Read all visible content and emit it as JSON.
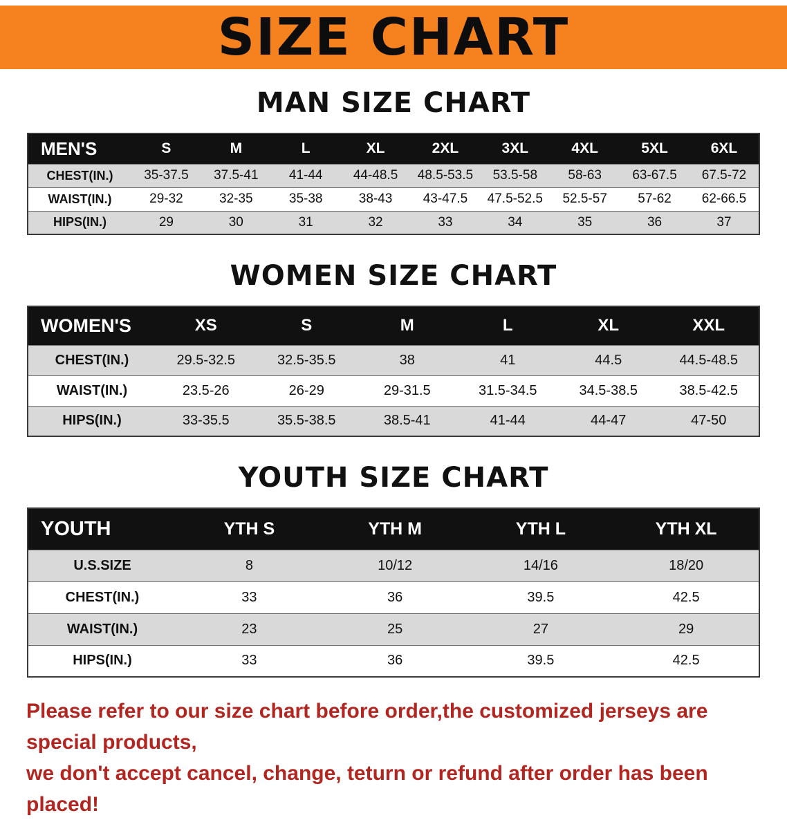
{
  "banner": {
    "title": "SIZE CHART"
  },
  "colors": {
    "banner_bg": "#F5821F",
    "banner_text": "#0D0D0D",
    "table_header_bg": "#111111",
    "table_header_text": "#FFFFFF",
    "stripe_bg": "#D9D9D9",
    "note_text": "#B12621"
  },
  "sections": [
    {
      "id": "mens",
      "heading": "MAN SIZE CHART",
      "table": {
        "header": [
          "MEN'S",
          "S",
          "M",
          "L",
          "XL",
          "2XL",
          "3XL",
          "4XL",
          "5XL",
          "6XL"
        ],
        "rows": [
          [
            "CHEST(IN.)",
            "35-37.5",
            "37.5-41",
            "41-44",
            "44-48.5",
            "48.5-53.5",
            "53.5-58",
            "58-63",
            "63-67.5",
            "67.5-72"
          ],
          [
            "WAIST(IN.)",
            "29-32",
            "32-35",
            "35-38",
            "38-43",
            "43-47.5",
            "47.5-52.5",
            "52.5-57",
            "57-62",
            "62-66.5"
          ],
          [
            "HIPS(IN.)",
            "29",
            "30",
            "31",
            "32",
            "33",
            "34",
            "35",
            "36",
            "37"
          ]
        ]
      }
    },
    {
      "id": "womens",
      "heading": "WOMEN SIZE CHART",
      "table": {
        "header": [
          "WOMEN'S",
          "XS",
          "S",
          "M",
          "L",
          "XL",
          "XXL"
        ],
        "rows": [
          [
            "CHEST(IN.)",
            "29.5-32.5",
            "32.5-35.5",
            "38",
            "41",
            "44.5",
            "44.5-48.5"
          ],
          [
            "WAIST(IN.)",
            "23.5-26",
            "26-29",
            "29-31.5",
            "31.5-34.5",
            "34.5-38.5",
            "38.5-42.5"
          ],
          [
            "HIPS(IN.)",
            "33-35.5",
            "35.5-38.5",
            "38.5-41",
            "41-44",
            "44-47",
            "47-50"
          ]
        ]
      }
    },
    {
      "id": "youth",
      "heading": "YOUTH SIZE CHART",
      "table": {
        "header": [
          "YOUTH",
          "YTH S",
          "YTH M",
          "YTH L",
          "YTH XL"
        ],
        "rows": [
          [
            "U.S.SIZE",
            "8",
            "10/12",
            "14/16",
            "18/20"
          ],
          [
            "CHEST(IN.)",
            "33",
            "36",
            "39.5",
            "42.5"
          ],
          [
            "WAIST(IN.)",
            "23",
            "25",
            "27",
            "29"
          ],
          [
            "HIPS(IN.)",
            "33",
            "36",
            "39.5",
            "42.5"
          ]
        ]
      }
    }
  ],
  "footer": {
    "line1": "Please refer to our size chart before order,the customized jerseys are special products,",
    "line2": "we don't accept cancel, change, teturn or refund after order has been placed!"
  }
}
